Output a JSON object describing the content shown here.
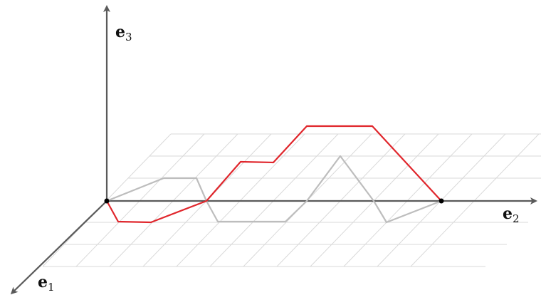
{
  "axes": {
    "e1": {
      "name": "e",
      "sub": "1"
    },
    "e2": {
      "name": "e",
      "sub": "2"
    },
    "e3": {
      "name": "e",
      "sub": "3"
    }
  },
  "colors": {
    "axis": "#5a5a5a",
    "grid": "#d9d9d9",
    "red_path": "#e0262c",
    "gray_path": "#bdbdbd",
    "point": "#000000"
  }
}
